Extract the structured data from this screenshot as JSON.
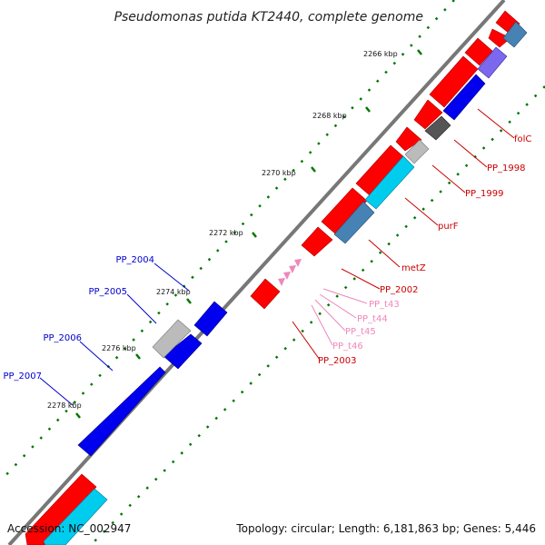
{
  "title": "Pseudomonas putida KT2440, complete genome",
  "footer": {
    "accession": "Accession: NC_002947",
    "topology": "Topology: circular; Length: 6,181,863 bp; Genes: 5,446"
  },
  "ticks": [
    "2266 kbp",
    "2268 kbp",
    "2270 kbp",
    "2272 kbp",
    "2274 kbp",
    "2276 kbp",
    "2278 kbp"
  ],
  "gene_labels": {
    "folC": "folC",
    "PP_1998": "PP_1998",
    "PP_1999": "PP_1999",
    "purF": "purF",
    "metZ": "metZ",
    "PP_2002": "PP_2002",
    "PP_t43": "PP_t43",
    "PP_t44": "PP_t44",
    "PP_t45": "PP_t45",
    "PP_t46": "PP_t46",
    "PP_2003": "PP_2003",
    "PP_2004": "PP_2004",
    "PP_2005": "PP_2005",
    "PP_2006": "PP_2006",
    "PP_2007": "PP_2007"
  },
  "colors": {
    "forward_gene": "#ff0000",
    "reverse_gene": "#0000ee",
    "forward_label": "#cc0000",
    "reverse_label": "#0000cc",
    "trna": "#ee88bb",
    "cog_light": "#00ccee",
    "cog_steel": "#4682b4",
    "cog_purple": "#7b68ee",
    "cog_gray": "#bbbbbb",
    "cog_dark": "#555555",
    "tick": "#007700",
    "backbone": "#777777"
  }
}
